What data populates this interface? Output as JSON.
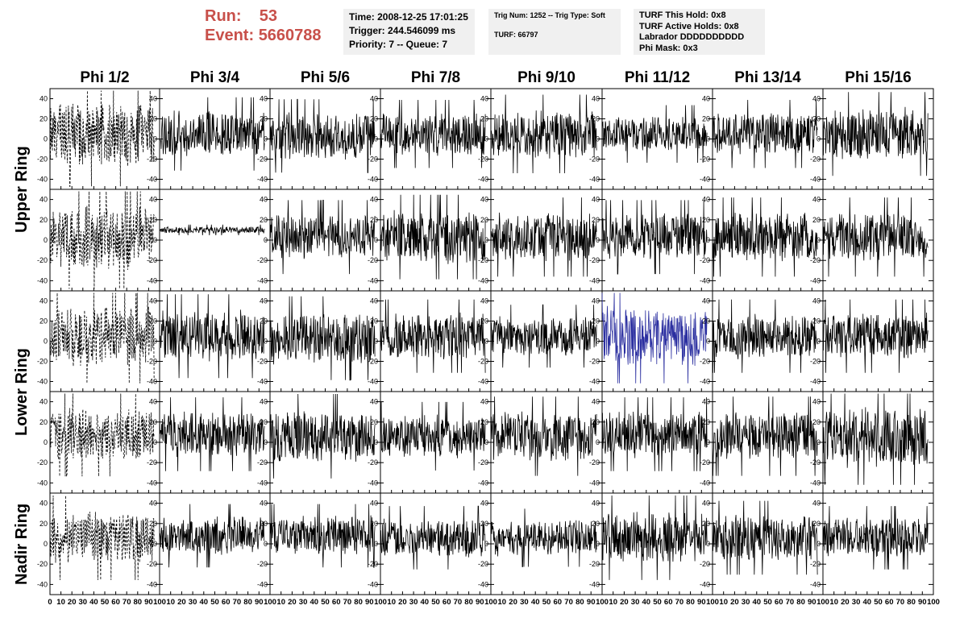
{
  "header": {
    "run_label": "Run:",
    "run_value": "53",
    "event_label": "Event:",
    "event_value": "5660788",
    "time": "Time: 2008-12-25 17:01:25",
    "trigger": "Trigger: 244.546099 ms",
    "priority": "Priority: 7 -- Queue: 7",
    "trig_num": "Trig Num: 1252 -- Trig Type: Soft",
    "turf": "TURF: 66797",
    "turf_this_hold": "TURF This Hold: 0x8",
    "turf_active_holds": "TURF Active Holds: 0x8",
    "labrador": "Labrador DDDDDDDDDD",
    "phi_mask": "Phi Mask: 0x3"
  },
  "chart_data": {
    "type": "line",
    "columns": [
      "Phi 1/2",
      "Phi 3/4",
      "Phi 5/6",
      "Phi 7/8",
      "Phi 9/10",
      "Phi 11/12",
      "Phi 13/14",
      "Phi 15/16"
    ],
    "rows": [
      "Upper Ring",
      "Upper Ring",
      "Lower Ring",
      "Lower Ring",
      "Nadir Ring"
    ],
    "row_labels": [
      {
        "label": "Upper Ring",
        "spans_rows": [
          0,
          1
        ]
      },
      {
        "label": "Lower Ring",
        "spans_rows": [
          2,
          3
        ]
      },
      {
        "label": "Nadir Ring",
        "spans_rows": [
          4
        ]
      }
    ],
    "xlim": [
      0,
      100
    ],
    "ylim": [
      -50,
      50
    ],
    "yticks": [
      -40,
      -20,
      0,
      20,
      40
    ],
    "xticks": [
      0,
      10,
      20,
      30,
      40,
      50,
      60,
      70,
      80,
      90,
      100
    ],
    "samples_per_trace": 260,
    "highlight": {
      "row": 2,
      "col": 5,
      "color": "#2b2fa0"
    },
    "dashed_column": 0,
    "series": [
      {
        "row": 0,
        "col": 0,
        "amplitude": 20,
        "mean": 5,
        "style": "dashed"
      },
      {
        "row": 0,
        "col": 1,
        "amplitude": 14,
        "mean": 5
      },
      {
        "row": 0,
        "col": 2,
        "amplitude": 14,
        "mean": 3
      },
      {
        "row": 0,
        "col": 3,
        "amplitude": 13,
        "mean": 5
      },
      {
        "row": 0,
        "col": 4,
        "amplitude": 15,
        "mean": 5
      },
      {
        "row": 0,
        "col": 5,
        "amplitude": 11,
        "mean": 5
      },
      {
        "row": 0,
        "col": 6,
        "amplitude": 13,
        "mean": 5
      },
      {
        "row": 0,
        "col": 7,
        "amplitude": 16,
        "mean": 5
      },
      {
        "row": 1,
        "col": 0,
        "amplitude": 20,
        "mean": 3,
        "style": "dashed"
      },
      {
        "row": 1,
        "col": 1,
        "amplitude": 2,
        "mean": 10
      },
      {
        "row": 1,
        "col": 2,
        "amplitude": 14,
        "mean": 3
      },
      {
        "row": 1,
        "col": 3,
        "amplitude": 16,
        "mean": 3
      },
      {
        "row": 1,
        "col": 4,
        "amplitude": 15,
        "mean": 3
      },
      {
        "row": 1,
        "col": 5,
        "amplitude": 14,
        "mean": 3
      },
      {
        "row": 1,
        "col": 6,
        "amplitude": 15,
        "mean": 3
      },
      {
        "row": 1,
        "col": 7,
        "amplitude": 15,
        "mean": 3
      },
      {
        "row": 2,
        "col": 0,
        "amplitude": 18,
        "mean": 5,
        "style": "dashed"
      },
      {
        "row": 2,
        "col": 1,
        "amplitude": 16,
        "mean": 5
      },
      {
        "row": 2,
        "col": 2,
        "amplitude": 16,
        "mean": 3
      },
      {
        "row": 2,
        "col": 3,
        "amplitude": 14,
        "mean": 5
      },
      {
        "row": 2,
        "col": 4,
        "amplitude": 12,
        "mean": 5
      },
      {
        "row": 2,
        "col": 5,
        "amplitude": 18,
        "mean": 5
      },
      {
        "row": 2,
        "col": 6,
        "amplitude": 14,
        "mean": 5
      },
      {
        "row": 2,
        "col": 7,
        "amplitude": 14,
        "mean": 5
      },
      {
        "row": 3,
        "col": 0,
        "amplitude": 16,
        "mean": 8,
        "style": "dashed"
      },
      {
        "row": 3,
        "col": 1,
        "amplitude": 14,
        "mean": 8
      },
      {
        "row": 3,
        "col": 2,
        "amplitude": 16,
        "mean": 6
      },
      {
        "row": 3,
        "col": 3,
        "amplitude": 13,
        "mean": 6
      },
      {
        "row": 3,
        "col": 4,
        "amplitude": 15,
        "mean": 6
      },
      {
        "row": 3,
        "col": 5,
        "amplitude": 14,
        "mean": 8
      },
      {
        "row": 3,
        "col": 6,
        "amplitude": 15,
        "mean": 6
      },
      {
        "row": 3,
        "col": 7,
        "amplitude": 18,
        "mean": 5
      },
      {
        "row": 4,
        "col": 0,
        "amplitude": 16,
        "mean": 6,
        "style": "dashed"
      },
      {
        "row": 4,
        "col": 1,
        "amplitude": 12,
        "mean": 8
      },
      {
        "row": 4,
        "col": 2,
        "amplitude": 12,
        "mean": 8
      },
      {
        "row": 4,
        "col": 3,
        "amplitude": 12,
        "mean": 6
      },
      {
        "row": 4,
        "col": 4,
        "amplitude": 11,
        "mean": 6
      },
      {
        "row": 4,
        "col": 5,
        "amplitude": 16,
        "mean": 6
      },
      {
        "row": 4,
        "col": 6,
        "amplitude": 14,
        "mean": 6
      },
      {
        "row": 4,
        "col": 7,
        "amplitude": 12,
        "mean": 6
      }
    ]
  }
}
